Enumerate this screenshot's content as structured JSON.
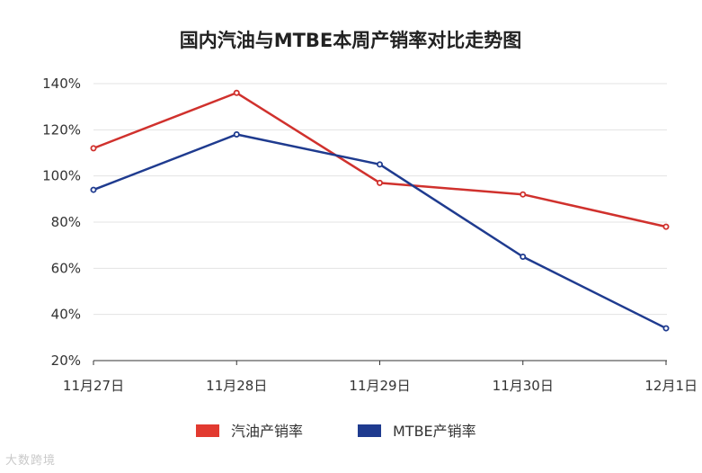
{
  "chart_data": {
    "type": "line",
    "title": "国内汽油与MTBE本周产销率对比走势图",
    "categories": [
      "11月27日",
      "11月28日",
      "11月29日",
      "11月30日",
      "12月1日"
    ],
    "series": [
      {
        "name": "汽油产销率",
        "color": "#d0312d",
        "values": [
          112,
          136,
          97,
          92,
          78
        ]
      },
      {
        "name": "MTBE产销率",
        "color": "#1f3b8f",
        "values": [
          94,
          118,
          105,
          65,
          34
        ]
      }
    ],
    "ylim": [
      20,
      140
    ],
    "yticks": [
      "20%",
      "40%",
      "60%",
      "80%",
      "100%",
      "120%",
      "140%"
    ],
    "grid": true,
    "legend": "bottom"
  },
  "watermark": "大数跨境"
}
